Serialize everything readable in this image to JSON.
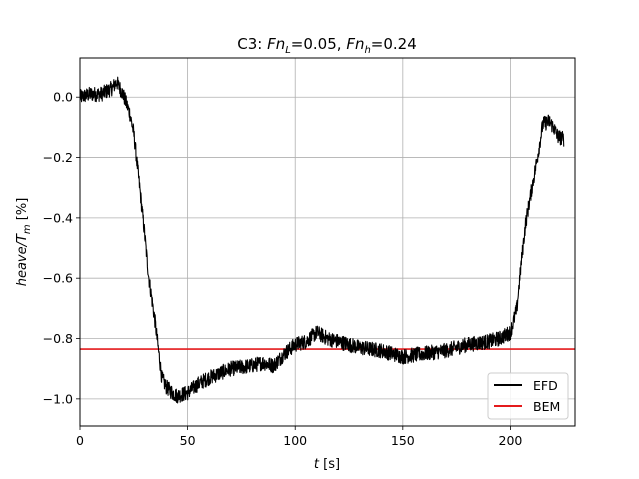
{
  "chart_data": {
    "type": "line",
    "title": {
      "prefix": "C3: ",
      "fnl_symbol": "Fn",
      "fnl_sub": "L",
      "fnl_value": "=0.05, ",
      "fnh_symbol": "Fn",
      "fnh_sub": "h",
      "fnh_value": "=0.24"
    },
    "xlabel": {
      "symbol": "t",
      "unit": " [s]"
    },
    "ylabel": {
      "num": "heave/T",
      "sub": "m",
      "unit": " [%]"
    },
    "xlim": [
      0,
      230
    ],
    "ylim": [
      -1.09,
      0.13
    ],
    "xticks": [
      0,
      50,
      100,
      150,
      200
    ],
    "yticks": [
      0.0,
      -0.2,
      -0.4,
      -0.6,
      -0.8,
      -1.0
    ],
    "xtick_labels": [
      "0",
      "50",
      "100",
      "150",
      "200"
    ],
    "ytick_labels": [
      "0.0",
      "−0.2",
      "−0.4",
      "−0.6",
      "−0.8",
      "−1.0"
    ],
    "grid": true,
    "legend_position": "lower-right",
    "series": [
      {
        "name": "EFD",
        "color": "#000000",
        "noise": 0.025,
        "x": [
          0,
          5,
          10,
          15,
          17,
          20,
          23,
          25,
          27,
          30,
          32,
          35,
          37,
          38,
          40,
          43,
          45,
          50,
          55,
          60,
          70,
          80,
          85,
          90,
          95,
          100,
          105,
          110,
          115,
          120,
          130,
          140,
          150,
          160,
          170,
          180,
          190,
          195,
          200,
          203,
          205,
          207,
          210,
          213,
          215,
          218,
          220,
          222,
          225
        ],
        "y": [
          0.0,
          0.01,
          0.01,
          0.03,
          0.05,
          0.01,
          -0.05,
          -0.12,
          -0.25,
          -0.45,
          -0.6,
          -0.75,
          -0.87,
          -0.93,
          -0.96,
          -0.98,
          -0.99,
          -0.98,
          -0.95,
          -0.93,
          -0.9,
          -0.89,
          -0.88,
          -0.89,
          -0.85,
          -0.82,
          -0.81,
          -0.78,
          -0.8,
          -0.81,
          -0.83,
          -0.84,
          -0.86,
          -0.85,
          -0.84,
          -0.82,
          -0.81,
          -0.8,
          -0.78,
          -0.7,
          -0.55,
          -0.42,
          -0.3,
          -0.18,
          -0.09,
          -0.08,
          -0.1,
          -0.13,
          -0.14
        ]
      },
      {
        "name": "BEM",
        "color": "#e41a1c",
        "y_const": -0.835,
        "x": [
          0,
          230
        ],
        "y": [
          -0.835,
          -0.835
        ]
      }
    ]
  }
}
